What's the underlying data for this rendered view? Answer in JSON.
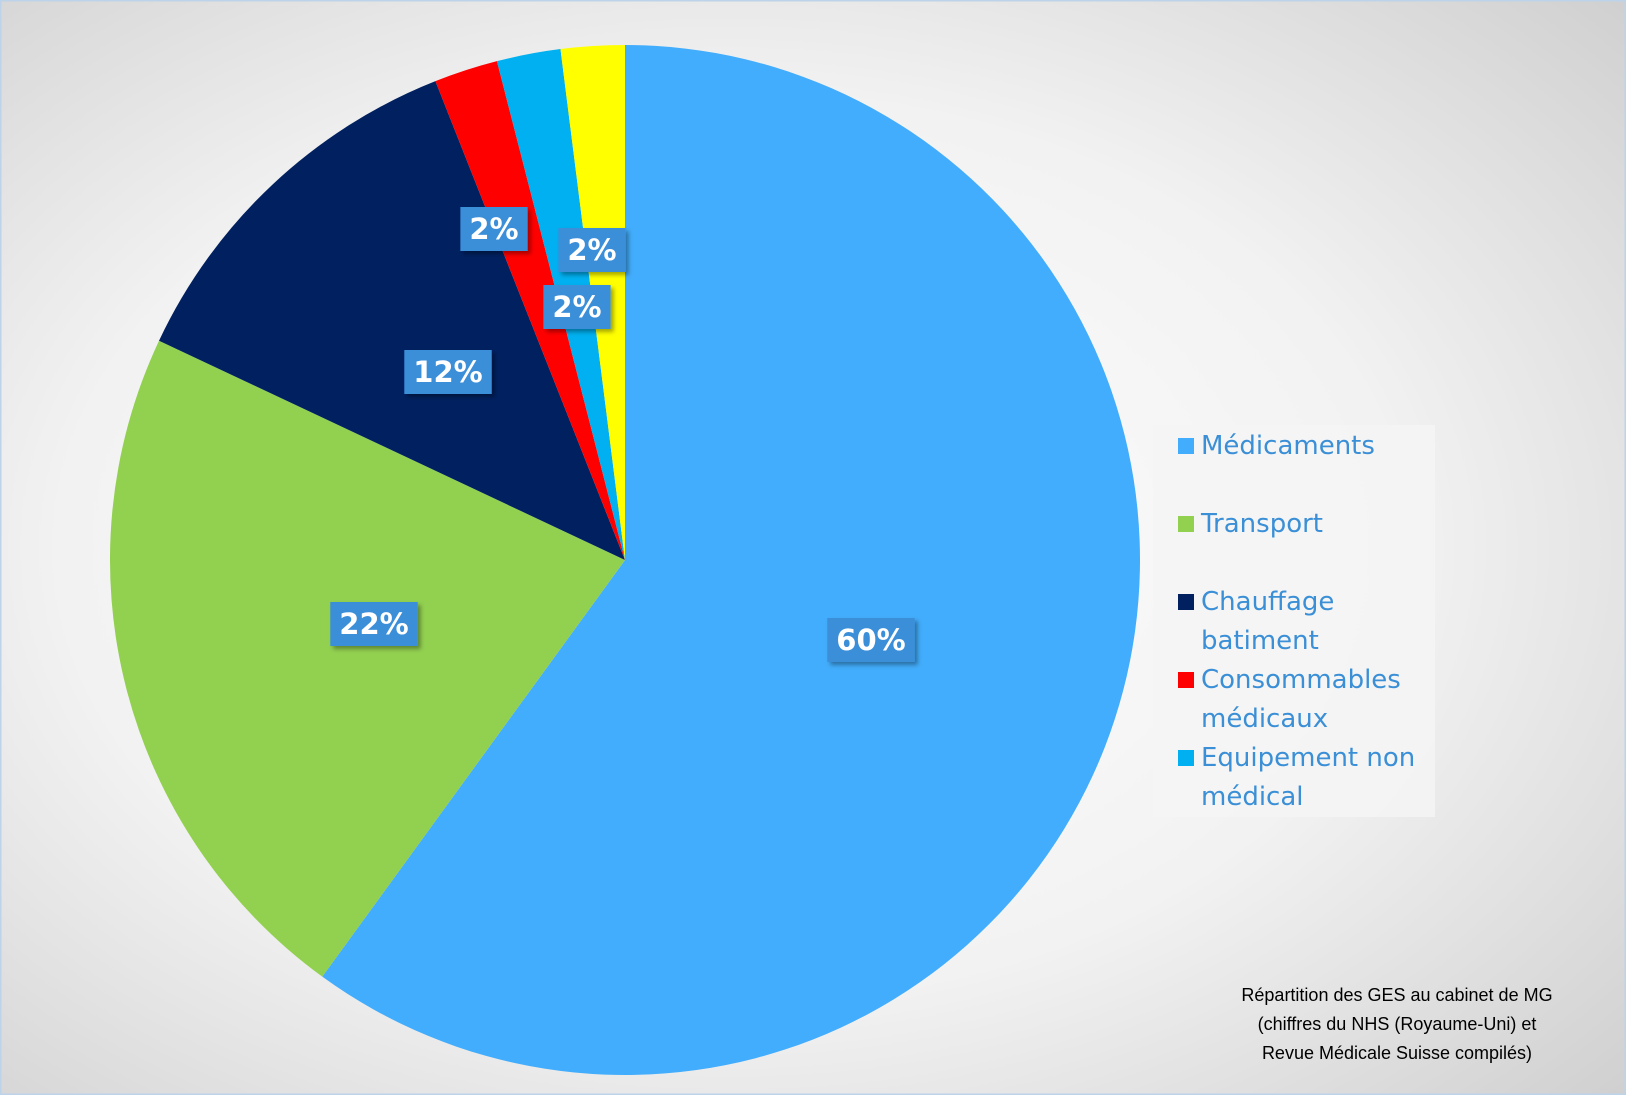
{
  "chart_data": {
    "type": "pie",
    "categories": [
      "Médicaments",
      "Transport",
      "Chauffage batiment",
      "Consommables médicaux",
      "Equipement non médical",
      null
    ],
    "values": [
      60,
      22,
      12,
      2,
      2,
      2
    ],
    "value_labels": [
      "60%",
      "22%",
      "12%",
      "2%",
      "2%",
      "2%"
    ],
    "colors": [
      "#42adfc",
      "#92d050",
      "#002060",
      "#ff0000",
      "#00b0f0",
      "#ffff00"
    ],
    "legend": "right",
    "annotation": [
      "Répartition des GES au cabinet de MG",
      "(chiffres du NHS (Royaume-Uni) et",
      "Revue Médicale Suisse compilés)"
    ]
  }
}
